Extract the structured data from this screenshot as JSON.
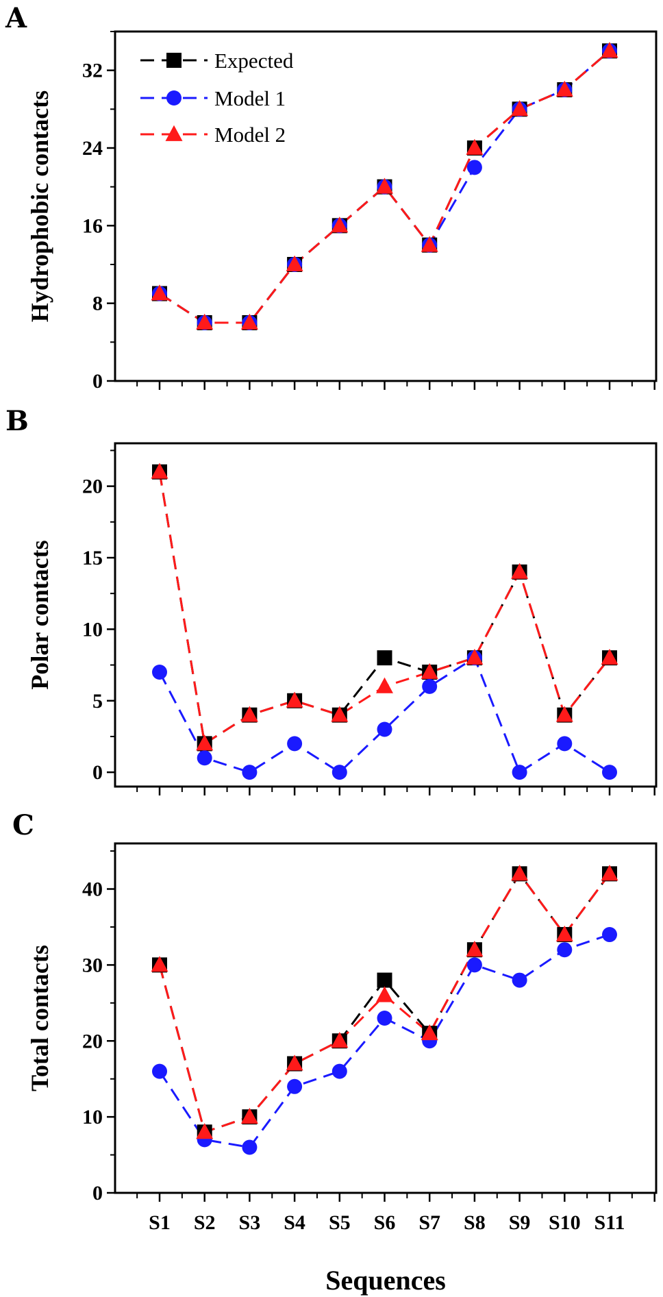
{
  "chart_data": [
    {
      "type": "line",
      "panel_label": "A",
      "ylabel": "Hydrophobic contacts",
      "xlabel": "",
      "ylim": [
        0,
        36
      ],
      "yticks": [
        0,
        8,
        16,
        24,
        32
      ],
      "categories": [
        "S1",
        "S2",
        "S3",
        "S4",
        "S5",
        "S6",
        "S7",
        "S8",
        "S9",
        "S10",
        "S11"
      ],
      "legend": {
        "position": "top-left",
        "entries": [
          "Expected",
          "Model 1",
          "Model 2"
        ]
      },
      "series": [
        {
          "name": "Expected",
          "color": "#000000",
          "marker": "square",
          "values": [
            9,
            6,
            6,
            12,
            16,
            20,
            14,
            24,
            28,
            30,
            34
          ]
        },
        {
          "name": "Model 1",
          "color": "#1a1aff",
          "marker": "circle",
          "values": [
            9,
            6,
            6,
            12,
            16,
            20,
            14,
            22,
            28,
            30,
            34
          ]
        },
        {
          "name": "Model 2",
          "color": "#ff1a1a",
          "marker": "triangle",
          "values": [
            9,
            6,
            6,
            12,
            16,
            20,
            14,
            24,
            28,
            30,
            34
          ]
        }
      ]
    },
    {
      "type": "line",
      "panel_label": "B",
      "ylabel": "Polar contacts",
      "xlabel": "",
      "ylim": [
        -1,
        23
      ],
      "yticks": [
        0,
        5,
        10,
        15,
        20
      ],
      "categories": [
        "S1",
        "S2",
        "S3",
        "S4",
        "S5",
        "S6",
        "S7",
        "S8",
        "S9",
        "S10",
        "S11"
      ],
      "series": [
        {
          "name": "Expected",
          "color": "#000000",
          "marker": "square",
          "values": [
            21,
            2,
            4,
            5,
            4,
            8,
            7,
            8,
            14,
            4,
            8
          ]
        },
        {
          "name": "Model 1",
          "color": "#1a1aff",
          "marker": "circle",
          "values": [
            7,
            1,
            0,
            2,
            0,
            3,
            6,
            8,
            0,
            2,
            0
          ]
        },
        {
          "name": "Model 2",
          "color": "#ff1a1a",
          "marker": "triangle",
          "values": [
            21,
            2,
            4,
            5,
            4,
            6,
            7,
            8,
            14,
            4,
            8
          ]
        }
      ]
    },
    {
      "type": "line",
      "panel_label": "C",
      "ylabel": "Total contacts",
      "xlabel": "Sequences",
      "ylim": [
        0,
        46
      ],
      "yticks": [
        0,
        10,
        20,
        30,
        40
      ],
      "categories": [
        "S1",
        "S2",
        "S3",
        "S4",
        "S5",
        "S6",
        "S7",
        "S8",
        "S9",
        "S10",
        "S11"
      ],
      "series": [
        {
          "name": "Expected",
          "color": "#000000",
          "marker": "square",
          "values": [
            30,
            8,
            10,
            17,
            20,
            28,
            21,
            32,
            42,
            34,
            42
          ]
        },
        {
          "name": "Model 1",
          "color": "#1a1aff",
          "marker": "circle",
          "values": [
            16,
            7,
            6,
            14,
            16,
            23,
            20,
            30,
            28,
            32,
            34
          ]
        },
        {
          "name": "Model 2",
          "color": "#ff1a1a",
          "marker": "triangle",
          "values": [
            30,
            8,
            10,
            17,
            20,
            26,
            21,
            32,
            42,
            34,
            42
          ]
        }
      ]
    }
  ]
}
